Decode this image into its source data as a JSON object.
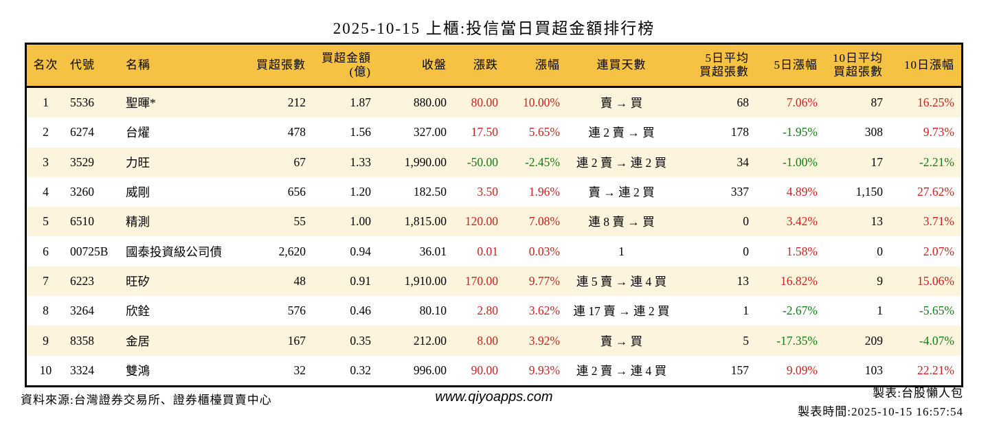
{
  "colors": {
    "up": "#cc1f1f",
    "down": "#0e7d12",
    "header_bg": "#f5c243",
    "row_alt_bg": "#fcf4dd",
    "border": "#000000"
  },
  "chart_data": {
    "type": "table",
    "title": "2025-10-15 上櫃:投信當日買超金額排行榜",
    "columns": [
      {
        "id": "rank",
        "label": "名次"
      },
      {
        "id": "code",
        "label": "代號"
      },
      {
        "id": "name",
        "label": "名稱"
      },
      {
        "id": "net_lots",
        "label": "買超張數"
      },
      {
        "id": "net_amount",
        "label": "買超金額",
        "label2": "(億)"
      },
      {
        "id": "close",
        "label": "收盤"
      },
      {
        "id": "change",
        "label": "漲跌"
      },
      {
        "id": "change_pct",
        "label": "漲幅"
      },
      {
        "id": "streak",
        "label": "連買天數"
      },
      {
        "id": "avg5_lots",
        "label": "5日平均",
        "label2": "買超張數"
      },
      {
        "id": "pct5",
        "label": "5日漲幅"
      },
      {
        "id": "avg10_lots",
        "label": "10日平均",
        "label2": "買超張數"
      },
      {
        "id": "pct10",
        "label": "10日漲幅"
      }
    ],
    "rows": [
      {
        "rank": "1",
        "code": "5536",
        "name": "聖暉*",
        "net_lots": "212",
        "net_amount": "1.87",
        "close": "880.00",
        "change": "80.00",
        "change_color": "up",
        "change_pct": "10.00%",
        "change_pct_color": "up",
        "streak": "賣 → 買",
        "avg5_lots": "68",
        "pct5": "7.06%",
        "pct5_color": "up",
        "avg10_lots": "87",
        "pct10": "16.25%",
        "pct10_color": "up"
      },
      {
        "rank": "2",
        "code": "6274",
        "name": "台燿",
        "net_lots": "478",
        "net_amount": "1.56",
        "close": "327.00",
        "change": "17.50",
        "change_color": "up",
        "change_pct": "5.65%",
        "change_pct_color": "up",
        "streak": "連 2 賣 → 買",
        "avg5_lots": "178",
        "pct5": "-1.95%",
        "pct5_color": "down",
        "avg10_lots": "308",
        "pct10": "9.73%",
        "pct10_color": "up"
      },
      {
        "rank": "3",
        "code": "3529",
        "name": "力旺",
        "net_lots": "67",
        "net_amount": "1.33",
        "close": "1,990.00",
        "change": "-50.00",
        "change_color": "down",
        "change_pct": "-2.45%",
        "change_pct_color": "down",
        "streak": "連 2 賣 → 連 2 買",
        "avg5_lots": "34",
        "pct5": "-1.00%",
        "pct5_color": "down",
        "avg10_lots": "17",
        "pct10": "-2.21%",
        "pct10_color": "down"
      },
      {
        "rank": "4",
        "code": "3260",
        "name": "威剛",
        "net_lots": "656",
        "net_amount": "1.20",
        "close": "182.50",
        "change": "3.50",
        "change_color": "up",
        "change_pct": "1.96%",
        "change_pct_color": "up",
        "streak": "賣 → 連 2 買",
        "avg5_lots": "337",
        "pct5": "4.89%",
        "pct5_color": "up",
        "avg10_lots": "1,150",
        "pct10": "27.62%",
        "pct10_color": "up"
      },
      {
        "rank": "5",
        "code": "6510",
        "name": "精測",
        "net_lots": "55",
        "net_amount": "1.00",
        "close": "1,815.00",
        "change": "120.00",
        "change_color": "up",
        "change_pct": "7.08%",
        "change_pct_color": "up",
        "streak": "連 8 賣 → 買",
        "avg5_lots": "0",
        "pct5": "3.42%",
        "pct5_color": "up",
        "avg10_lots": "13",
        "pct10": "3.71%",
        "pct10_color": "up"
      },
      {
        "rank": "6",
        "code": "00725B",
        "name": "國泰投資級公司債",
        "net_lots": "2,620",
        "net_amount": "0.94",
        "close": "36.01",
        "change": "0.01",
        "change_color": "up",
        "change_pct": "0.03%",
        "change_pct_color": "up",
        "streak": "1",
        "avg5_lots": "0",
        "pct5": "1.58%",
        "pct5_color": "up",
        "avg10_lots": "0",
        "pct10": "2.07%",
        "pct10_color": "up"
      },
      {
        "rank": "7",
        "code": "6223",
        "name": "旺矽",
        "net_lots": "48",
        "net_amount": "0.91",
        "close": "1,910.00",
        "change": "170.00",
        "change_color": "up",
        "change_pct": "9.77%",
        "change_pct_color": "up",
        "streak": "連 5 賣 → 連 4 買",
        "avg5_lots": "13",
        "pct5": "16.82%",
        "pct5_color": "up",
        "avg10_lots": "9",
        "pct10": "15.06%",
        "pct10_color": "up"
      },
      {
        "rank": "8",
        "code": "3264",
        "name": "欣銓",
        "net_lots": "576",
        "net_amount": "0.46",
        "close": "80.10",
        "change": "2.80",
        "change_color": "up",
        "change_pct": "3.62%",
        "change_pct_color": "up",
        "streak": "連 17 賣 → 連 2 買",
        "avg5_lots": "1",
        "pct5": "-2.67%",
        "pct5_color": "down",
        "avg10_lots": "1",
        "pct10": "-5.65%",
        "pct10_color": "down"
      },
      {
        "rank": "9",
        "code": "8358",
        "name": "金居",
        "net_lots": "167",
        "net_amount": "0.35",
        "close": "212.00",
        "change": "8.00",
        "change_color": "up",
        "change_pct": "3.92%",
        "change_pct_color": "up",
        "streak": "賣 → 買",
        "avg5_lots": "5",
        "pct5": "-17.35%",
        "pct5_color": "down",
        "avg10_lots": "209",
        "pct10": "-4.07%",
        "pct10_color": "down"
      },
      {
        "rank": "10",
        "code": "3324",
        "name": "雙鴻",
        "net_lots": "32",
        "net_amount": "0.32",
        "close": "996.00",
        "change": "90.00",
        "change_color": "up",
        "change_pct": "9.93%",
        "change_pct_color": "up",
        "streak": "連 2 賣 → 連 4 買",
        "avg5_lots": "157",
        "pct5": "9.09%",
        "pct5_color": "up",
        "avg10_lots": "103",
        "pct10": "22.21%",
        "pct10_color": "up"
      }
    ]
  },
  "footer": {
    "source": "資料來源:台灣證券交易所、證券櫃檯買賣中心",
    "website": "www.qiyoapps.com",
    "author": "製表:台股懶人包",
    "timestamp": "製表時間:2025-10-15 16:57:54"
  }
}
